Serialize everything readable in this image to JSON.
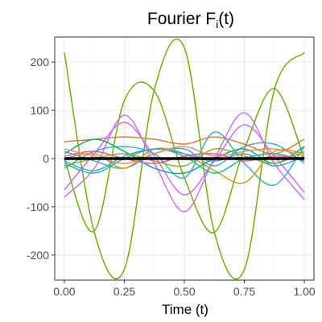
{
  "chart_data": {
    "type": "line",
    "title": "Fourier F",
    "title_subscript": "i",
    "title_suffix": "(t)",
    "xlabel": "Time (t)",
    "ylabel": "",
    "xlim": [
      -0.04,
      1.04
    ],
    "ylim": [
      -252,
      252
    ],
    "x_ticks": [
      0,
      0.25,
      0.5,
      0.75,
      1
    ],
    "x_tick_labels": [
      "0.00",
      "0.25",
      "0.50",
      "0.75",
      "1.00"
    ],
    "y_ticks": [
      -200,
      -100,
      0,
      100,
      200
    ],
    "y_tick_labels": [
      "-200",
      "-100",
      "0",
      "100",
      "200"
    ],
    "grid": true,
    "legend": "none",
    "sample_x": [
      0,
      0.125,
      0.25,
      0.375,
      0.5,
      0.625,
      0.75,
      0.875,
      1
    ],
    "series": [
      {
        "color": "#66AA00",
        "values": [
          220,
          -153,
          -230,
          143,
          230,
          -153,
          -230,
          143,
          220
        ]
      },
      {
        "color": "#66AA00",
        "values": [
          0,
          -150,
          120,
          140,
          -40,
          -153,
          20,
          145,
          0
        ]
      },
      {
        "color": "#CC66EE",
        "values": [
          -80,
          -20,
          90,
          -10,
          -110,
          0,
          95,
          -10,
          -85
        ]
      },
      {
        "color": "#CC66EE",
        "values": [
          -65,
          10,
          75,
          5,
          -75,
          -5,
          70,
          5,
          -70
        ]
      },
      {
        "color": "#33AACC",
        "values": [
          -20,
          15,
          25,
          10,
          -40,
          55,
          -10,
          -55,
          25
        ]
      },
      {
        "color": "#33AACC",
        "values": [
          15,
          -5,
          -20,
          10,
          20,
          -15,
          25,
          30,
          -10
        ]
      },
      {
        "color": "#DD7733",
        "values": [
          35,
          40,
          45,
          40,
          30,
          45,
          30,
          10,
          40
        ]
      },
      {
        "color": "#CC9900",
        "values": [
          0,
          10,
          -20,
          20,
          10,
          -25,
          -50,
          15,
          10
        ]
      },
      {
        "color": "#00AA66",
        "values": [
          10,
          40,
          15,
          -20,
          -30,
          0,
          20,
          -10,
          25
        ]
      },
      {
        "color": "#11BB88",
        "values": [
          -10,
          -30,
          0,
          20,
          5,
          -30,
          0,
          10,
          -5
        ]
      },
      {
        "color": "#FF44AA",
        "values": [
          5,
          15,
          0,
          -10,
          5,
          10,
          -5,
          5,
          0
        ]
      },
      {
        "color": "#3399FF",
        "values": [
          -5,
          -25,
          5,
          20,
          10,
          -5,
          10,
          -15,
          5
        ]
      },
      {
        "color": "#EE8866",
        "values": [
          20,
          5,
          -10,
          10,
          25,
          5,
          15,
          20,
          5
        ]
      },
      {
        "color": "#88AA22",
        "values": [
          -15,
          0,
          10,
          -5,
          -15,
          20,
          5,
          -10,
          15
        ]
      },
      {
        "color": "#000000",
        "values": [
          0,
          0,
          0,
          0,
          0,
          0,
          0,
          0,
          0
        ],
        "mean": true
      }
    ]
  },
  "style": {
    "panel_border_color": "#333333",
    "grid_major_color": "#e6e6e6",
    "grid_minor_color": "#f3f3f3",
    "tick_label_color": "#4d4d4d"
  }
}
